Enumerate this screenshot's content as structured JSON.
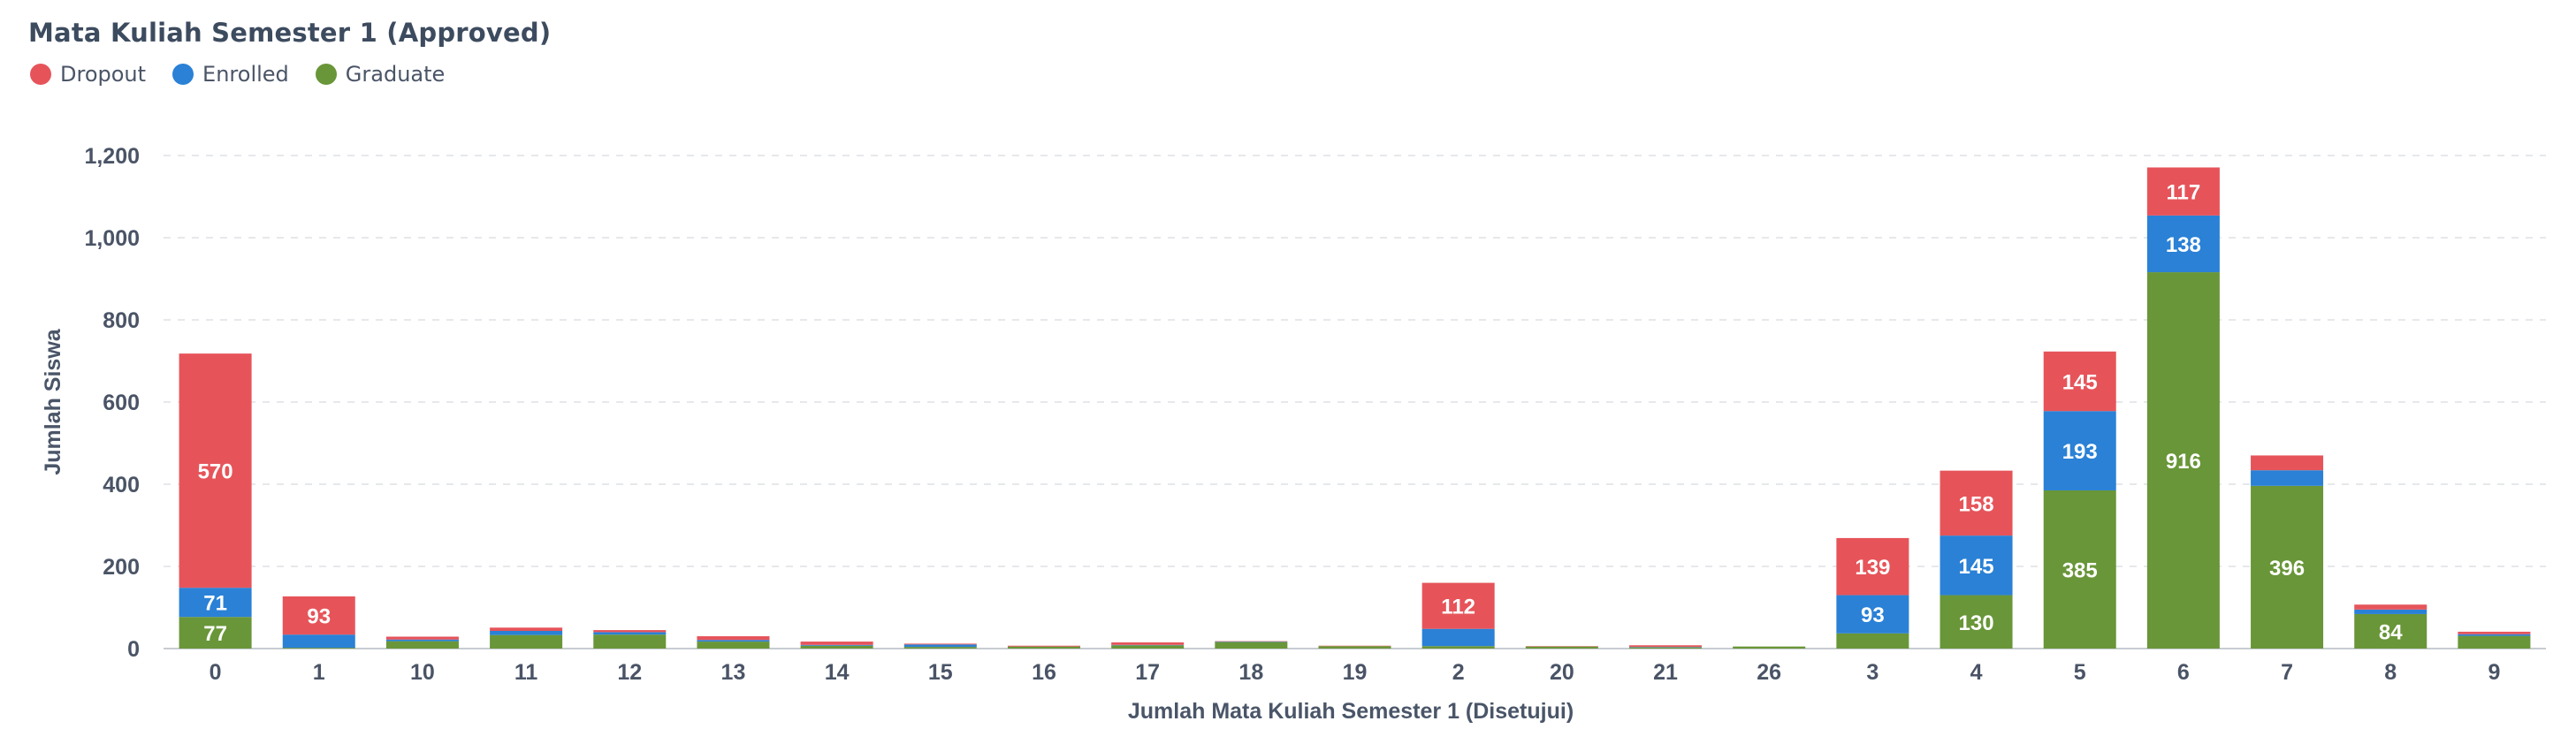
{
  "title": "Mata Kuliah Semester 1 (Approved)",
  "colors": {
    "Dropout": "#e6545a",
    "Enrolled": "#2a81d6",
    "Graduate": "#699638",
    "grid": "#e6e8eb",
    "axis": "#c8ccd2"
  },
  "legend": [
    {
      "name": "Dropout",
      "color": "#e6545a"
    },
    {
      "name": "Enrolled",
      "color": "#2a81d6"
    },
    {
      "name": "Graduate",
      "color": "#699638"
    }
  ],
  "chart_data": {
    "type": "bar",
    "stacked": true,
    "title": "Mata Kuliah Semester 1 (Approved)",
    "xlabel": "Jumlah Mata Kuliah Semester 1 (Disetujui)",
    "ylabel": "Jumlah Siswa",
    "ylim": [
      0,
      1200
    ],
    "yticks": [
      0,
      200,
      400,
      600,
      800,
      1000,
      1200
    ],
    "ytick_labels": [
      "0",
      "200",
      "400",
      "600",
      "800",
      "1,000",
      "1,200"
    ],
    "grid": true,
    "legend_position": "top-left",
    "categories": [
      "0",
      "1",
      "10",
      "11",
      "12",
      "13",
      "14",
      "15",
      "16",
      "17",
      "18",
      "19",
      "2",
      "20",
      "21",
      "26",
      "3",
      "4",
      "5",
      "6",
      "7",
      "8",
      "9"
    ],
    "series": [
      {
        "name": "Graduate",
        "values": [
          77,
          2,
          18,
          33,
          34,
          17,
          7,
          4,
          5,
          8,
          16,
          6,
          6,
          5,
          3,
          5,
          37,
          130,
          385,
          916,
          396,
          84,
          31
        ],
        "labels": [
          "77",
          null,
          null,
          null,
          null,
          null,
          null,
          null,
          null,
          null,
          null,
          null,
          null,
          null,
          null,
          null,
          null,
          "130",
          "385",
          "916",
          "396",
          "84",
          null
        ]
      },
      {
        "name": "Enrolled",
        "values": [
          71,
          32,
          4,
          10,
          6,
          4,
          2,
          6,
          0,
          1,
          1,
          0,
          42,
          0,
          1,
          0,
          93,
          145,
          193,
          138,
          38,
          11,
          4
        ],
        "labels": [
          "71",
          null,
          null,
          null,
          null,
          null,
          null,
          null,
          null,
          null,
          null,
          null,
          null,
          null,
          null,
          null,
          "93",
          "145",
          "193",
          "138",
          null,
          null,
          null
        ]
      },
      {
        "name": "Dropout",
        "values": [
          570,
          93,
          7,
          8,
          5,
          9,
          8,
          2,
          2,
          6,
          1,
          1,
          112,
          1,
          4,
          0,
          139,
          158,
          145,
          117,
          36,
          12,
          6
        ],
        "labels": [
          "570",
          "93",
          null,
          null,
          null,
          null,
          null,
          null,
          null,
          null,
          null,
          null,
          "112",
          null,
          null,
          null,
          "139",
          "158",
          "145",
          "117",
          null,
          null,
          null
        ]
      }
    ]
  }
}
